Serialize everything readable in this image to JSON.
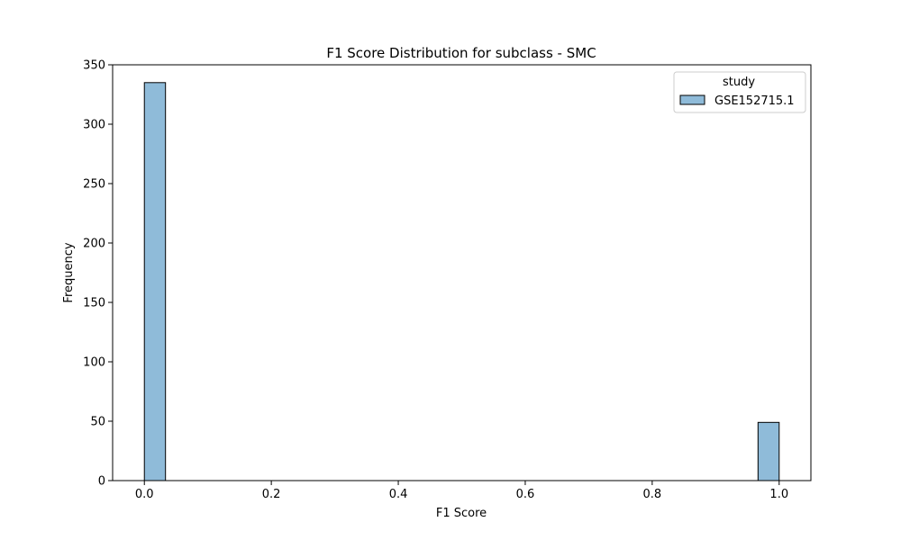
{
  "chart_data": {
    "type": "bar",
    "title": "F1 Score Distribution for subclass - SMC",
    "xlabel": "F1 Score",
    "ylabel": "Frequency",
    "xlim": [
      -0.05,
      1.05
    ],
    "ylim": [
      0,
      350
    ],
    "xticks": [
      "0.0",
      "0.2",
      "0.4",
      "0.6",
      "0.8",
      "1.0"
    ],
    "yticks": [
      "0",
      "50",
      "100",
      "150",
      "200",
      "250",
      "300",
      "350"
    ],
    "bin_edges": [
      0.0,
      0.0333,
      0.9667,
      1.0
    ],
    "series": [
      {
        "name": "GSE152715.1",
        "color": "#8fbbd9",
        "bins": [
          {
            "x0": 0.0,
            "x1": 0.0333,
            "count": 335
          },
          {
            "x0": 0.9667,
            "x1": 1.0,
            "count": 49
          }
        ]
      }
    ],
    "legend": {
      "title": "study",
      "placement": "top-right"
    },
    "grid": false
  }
}
